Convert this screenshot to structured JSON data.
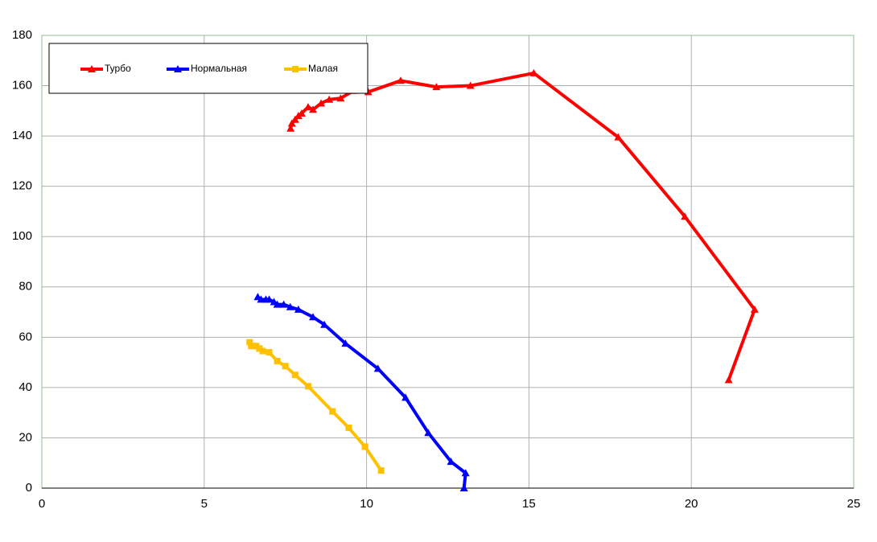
{
  "chart_data": {
    "type": "line",
    "xlim": [
      0,
      25
    ],
    "xticks": [
      0,
      5,
      10,
      15,
      20,
      25
    ],
    "ylim": [
      0,
      180
    ],
    "yticks": [
      0,
      20,
      40,
      60,
      80,
      100,
      120,
      140,
      160,
      180
    ],
    "grid": true,
    "legend": "top-left",
    "series": [
      {
        "name": "Турбо",
        "color": "#ff0000",
        "marker": "triangle",
        "x": [
          7.66,
          7.7,
          7.8,
          7.9,
          8.0,
          8.2,
          8.35,
          8.6,
          8.85,
          9.2,
          9.6,
          10.05,
          11.05,
          12.15,
          13.2,
          15.15,
          17.75,
          19.8,
          21.95,
          21.15
        ],
        "values": [
          143,
          145,
          146.5,
          148,
          149,
          151.5,
          150.5,
          153,
          154.5,
          155,
          158,
          157.5,
          162,
          159.5,
          160,
          165,
          139.5,
          108,
          71,
          43
        ]
      },
      {
        "name": "Нормальная",
        "color": "#0000ff",
        "marker": "triangle",
        "x": [
          6.65,
          6.75,
          6.9,
          7.0,
          7.15,
          7.25,
          7.45,
          7.65,
          7.9,
          8.35,
          8.7,
          9.35,
          10.35,
          11.2,
          11.9,
          12.6,
          13.05,
          13.0
        ],
        "values": [
          76,
          75,
          75,
          75,
          74,
          73,
          73,
          72,
          71,
          68,
          65,
          57.5,
          47.5,
          36,
          22,
          10.5,
          6,
          0
        ]
      },
      {
        "name": "Малая",
        "color": "#ffc000",
        "marker": "square",
        "x": [
          6.4,
          6.45,
          6.6,
          6.7,
          6.8,
          7.0,
          7.25,
          7.5,
          7.8,
          8.2,
          8.95,
          9.45,
          9.95,
          10.45
        ],
        "values": [
          58,
          56.5,
          56.5,
          55.5,
          54.5,
          54,
          50.5,
          48.5,
          45,
          40.5,
          30.5,
          24,
          16.5,
          7
        ]
      }
    ]
  }
}
